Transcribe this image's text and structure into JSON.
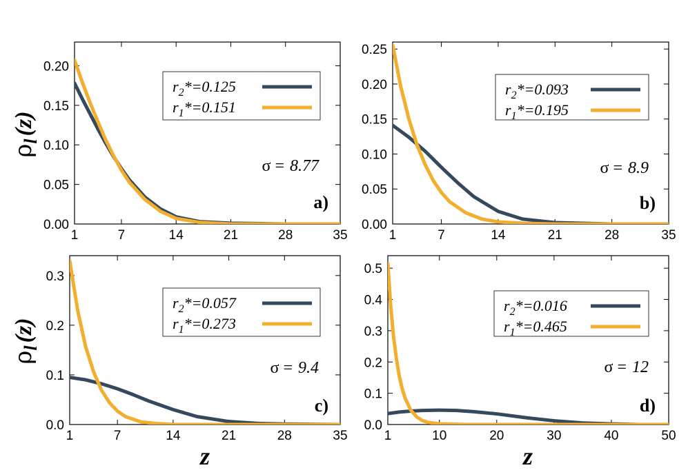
{
  "colors": {
    "dark": "#34495e",
    "orange": "#f2ae2e"
  },
  "ylabel": {
    "rho": "ρ",
    "sub": "l",
    "arg": "(z)"
  },
  "xlabel": "z",
  "chart_data": [
    {
      "type": "line",
      "panel_label": "a)",
      "sigma_symbol": "σ =",
      "sigma_value": "8.77",
      "xlim": [
        1,
        35
      ],
      "ylim": [
        0,
        0.23
      ],
      "xticks": [
        1,
        7,
        14,
        21,
        28,
        35
      ],
      "yticks": [
        0,
        0.05,
        0.1,
        0.15,
        0.2
      ],
      "ytick_labels": [
        "0.00",
        "0.05",
        "0.10",
        "0.15",
        "0.20"
      ],
      "legend_position": "top-right",
      "series": [
        {
          "name_base": "r",
          "name_sub": "2",
          "name_rest": "*=0.125",
          "color": "#34495e",
          "x": [
            1,
            2,
            3,
            4,
            5,
            6,
            7,
            8,
            10,
            12,
            14,
            17,
            21,
            28,
            35
          ],
          "y": [
            0.178,
            0.158,
            0.139,
            0.12,
            0.102,
            0.085,
            0.07,
            0.056,
            0.034,
            0.019,
            0.009,
            0.003,
            0.001,
            0.0,
            0.0
          ]
        },
        {
          "name_base": "r",
          "name_sub": "1",
          "name_rest": "*=0.151",
          "color": "#f2ae2e",
          "x": [
            1,
            2,
            3,
            4,
            5,
            6,
            7,
            8,
            10,
            12,
            14,
            17,
            21,
            28,
            35
          ],
          "y": [
            0.207,
            0.179,
            0.153,
            0.129,
            0.106,
            0.086,
            0.068,
            0.053,
            0.031,
            0.016,
            0.007,
            0.002,
            0.0,
            0.0,
            0.0
          ]
        }
      ]
    },
    {
      "type": "line",
      "panel_label": "b)",
      "sigma_symbol": "σ =",
      "sigma_value": "8.9",
      "xlim": [
        1,
        35
      ],
      "ylim": [
        0,
        0.26
      ],
      "xticks": [
        1,
        7,
        14,
        21,
        28,
        35
      ],
      "yticks": [
        0,
        0.05,
        0.1,
        0.15,
        0.2,
        0.25
      ],
      "ytick_labels": [
        "0.00",
        "0.05",
        "0.10",
        "0.15",
        "0.20",
        "0.25"
      ],
      "legend_position": "top-right",
      "series": [
        {
          "name_base": "r",
          "name_sub": "2",
          "name_rest": "*=0.093",
          "color": "#34495e",
          "x": [
            1,
            3,
            5,
            7,
            9,
            11,
            14,
            17,
            21,
            28,
            35
          ],
          "y": [
            0.141,
            0.124,
            0.104,
            0.081,
            0.059,
            0.039,
            0.018,
            0.007,
            0.002,
            0.0,
            0.0
          ]
        },
        {
          "name_base": "r",
          "name_sub": "1",
          "name_rest": "*=0.195",
          "color": "#f2ae2e",
          "x": [
            1,
            2,
            3,
            4,
            5,
            6,
            7,
            8,
            10,
            12,
            14,
            17,
            21,
            28,
            35
          ],
          "y": [
            0.256,
            0.196,
            0.15,
            0.113,
            0.085,
            0.062,
            0.045,
            0.032,
            0.016,
            0.007,
            0.003,
            0.001,
            0.0,
            0.0,
            0.0
          ]
        }
      ]
    },
    {
      "type": "line",
      "panel_label": "c)",
      "sigma_symbol": "σ =",
      "sigma_value": "9.4",
      "xlim": [
        1,
        35
      ],
      "ylim": [
        0,
        0.34
      ],
      "xticks": [
        1,
        7,
        14,
        21,
        28,
        35
      ],
      "yticks": [
        0,
        0.1,
        0.2,
        0.3
      ],
      "ytick_labels": [
        "0.0",
        "0.1",
        "0.2",
        "0.3"
      ],
      "legend_position": "top-right",
      "series": [
        {
          "name_base": "r",
          "name_sub": "2",
          "name_rest": "*=0.057",
          "color": "#34495e",
          "x": [
            1,
            3,
            5,
            7,
            9,
            11,
            14,
            17,
            21,
            25,
            28,
            35
          ],
          "y": [
            0.095,
            0.09,
            0.082,
            0.072,
            0.06,
            0.047,
            0.03,
            0.016,
            0.006,
            0.002,
            0.001,
            0.0
          ]
        },
        {
          "name_base": "r",
          "name_sub": "1",
          "name_rest": "*=0.273",
          "color": "#f2ae2e",
          "x": [
            1,
            2,
            3,
            4,
            5,
            6,
            7,
            8,
            10,
            12,
            14,
            17,
            21,
            28,
            35
          ],
          "y": [
            0.33,
            0.23,
            0.157,
            0.106,
            0.069,
            0.044,
            0.027,
            0.016,
            0.005,
            0.002,
            0.0,
            0.0,
            0.0,
            0.0,
            0.0
          ]
        }
      ]
    },
    {
      "type": "line",
      "panel_label": "d)",
      "sigma_symbol": "σ =",
      "sigma_value": "12",
      "xlim": [
        1,
        50
      ],
      "ylim": [
        0,
        0.54
      ],
      "xticks": [
        1,
        10,
        20,
        30,
        40,
        50
      ],
      "yticks": [
        0,
        0.1,
        0.2,
        0.3,
        0.4,
        0.5
      ],
      "ytick_labels": [
        "0.0",
        "0.1",
        "0.2",
        "0.3",
        "0.4",
        "0.5"
      ],
      "legend_position": "top-right",
      "series": [
        {
          "name_base": "r",
          "name_sub": "2",
          "name_rest": "*=0.016",
          "color": "#34495e",
          "x": [
            1,
            3,
            5,
            7,
            10,
            13,
            16,
            20,
            25,
            30,
            35,
            40,
            45,
            50
          ],
          "y": [
            0.035,
            0.04,
            0.043,
            0.045,
            0.046,
            0.045,
            0.041,
            0.034,
            0.022,
            0.012,
            0.005,
            0.002,
            0.0,
            0.0
          ]
        },
        {
          "name_base": "r",
          "name_sub": "1",
          "name_rest": "*=0.465",
          "color": "#f2ae2e",
          "x": [
            1,
            1.5,
            2,
            2.5,
            3,
            3.5,
            4,
            5,
            6,
            7,
            8,
            10,
            15,
            20,
            30,
            50
          ],
          "y": [
            0.515,
            0.38,
            0.28,
            0.21,
            0.155,
            0.115,
            0.085,
            0.046,
            0.025,
            0.013,
            0.007,
            0.002,
            0.0,
            0.0,
            0.0,
            0.0
          ]
        }
      ]
    }
  ]
}
